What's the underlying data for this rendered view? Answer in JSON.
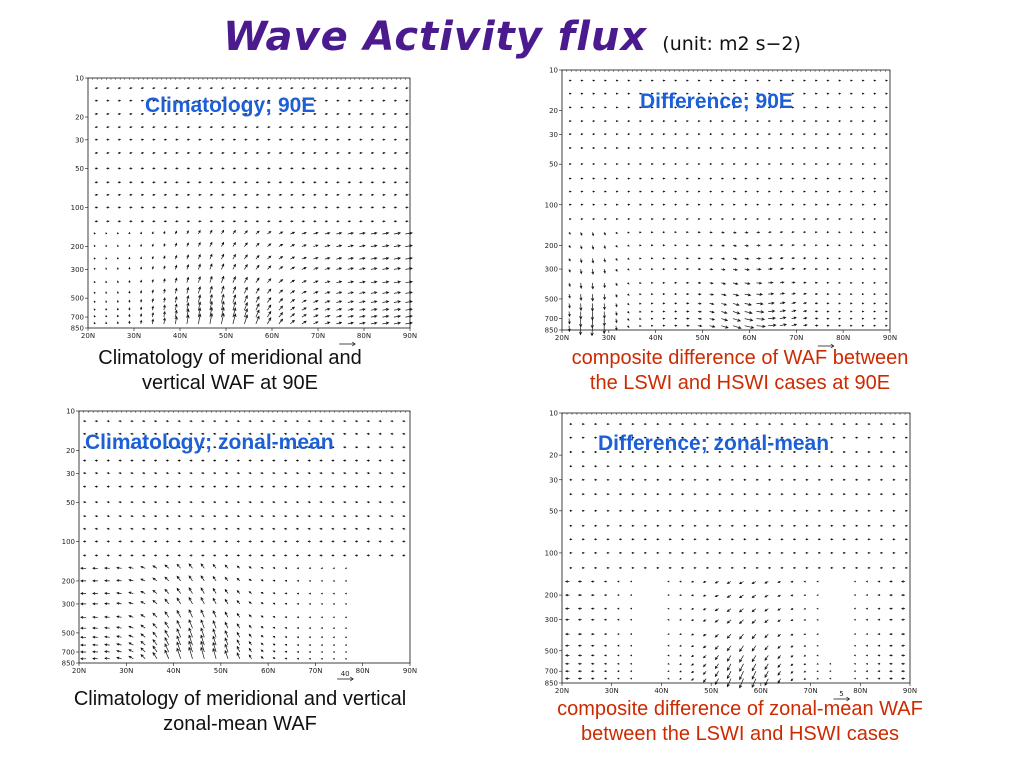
{
  "slide": {
    "title": "Wave Activity flux",
    "unit": "(unit: m2 s−2)"
  },
  "captions": {
    "top_left": [
      "Climatology of meridional and",
      "vertical WAF at 90E"
    ],
    "top_right": [
      "composite difference of WAF between",
      "the LSWI and HSWI cases at 90E"
    ],
    "bottom_left": [
      "Climatology of meridional and vertical",
      "zonal-mean WAF"
    ],
    "bottom_right": [
      "composite difference of zonal-mean WAF",
      "between the LSWI and HSWI cases"
    ]
  },
  "colors": {
    "title": "#4b1a8e",
    "panel_title": "#1c5fd6",
    "caption_red": "#cc2a00"
  },
  "chart_data": [
    {
      "type": "quiver",
      "title": "Climatology; 90E",
      "x_ticks": [
        "20N",
        "30N",
        "40N",
        "50N",
        "60N",
        "70N",
        "80N",
        "90N"
      ],
      "y_ticks": [
        "10",
        "20",
        "30",
        "50",
        "100",
        "200",
        "300",
        "500",
        "700",
        "850"
      ],
      "xlim": [
        20,
        90
      ],
      "ylim_hPa": [
        10,
        850
      ],
      "y_scale": "log",
      "y_inverted": true,
      "reference_vector": "",
      "field": "clim90"
    },
    {
      "type": "quiver",
      "title": "Difference; 90E",
      "x_ticks": [
        "20N",
        "30N",
        "40N",
        "50N",
        "60N",
        "70N",
        "80N",
        "90N"
      ],
      "y_ticks": [
        "10",
        "20",
        "30",
        "50",
        "100",
        "200",
        "300",
        "500",
        "700",
        "850"
      ],
      "xlim": [
        20,
        90
      ],
      "ylim_hPa": [
        10,
        850
      ],
      "y_scale": "log",
      "y_inverted": true,
      "reference_vector": "",
      "field": "diff90"
    },
    {
      "type": "quiver",
      "title": "Climatology; zonal-mean",
      "x_ticks": [
        "20N",
        "30N",
        "40N",
        "50N",
        "60N",
        "70N",
        "80N",
        "90N"
      ],
      "y_ticks": [
        "10",
        "20",
        "30",
        "50",
        "100",
        "200",
        "300",
        "500",
        "700",
        "850"
      ],
      "xlim": [
        20,
        90
      ],
      "ylim_hPa": [
        10,
        850
      ],
      "y_scale": "log",
      "y_inverted": true,
      "reference_vector": "40",
      "field": "climzm"
    },
    {
      "type": "quiver",
      "title": "Difference; zonal-mean",
      "x_ticks": [
        "20N",
        "30N",
        "40N",
        "50N",
        "60N",
        "70N",
        "80N",
        "90N"
      ],
      "y_ticks": [
        "10",
        "20",
        "30",
        "50",
        "100",
        "200",
        "300",
        "500",
        "700",
        "850"
      ],
      "xlim": [
        20,
        90
      ],
      "ylim_hPa": [
        10,
        850
      ],
      "y_scale": "log",
      "y_inverted": true,
      "reference_vector": "5",
      "field": "diffzm"
    }
  ]
}
